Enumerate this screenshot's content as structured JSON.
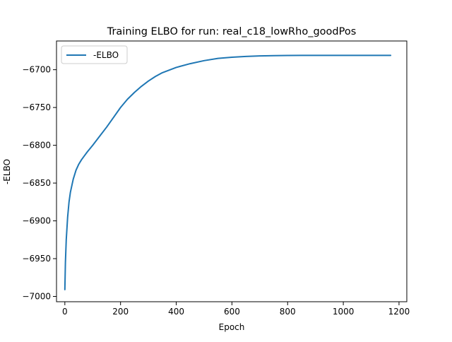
{
  "chart_data": {
    "type": "line",
    "title": "Training ELBO for run: real_c18_lowRho_goodPos",
    "xlabel": "Epoch",
    "ylabel": "-ELBO",
    "xlim": [
      -30,
      1228
    ],
    "ylim": [
      -7007,
      -6662
    ],
    "xticks": [
      0,
      200,
      400,
      600,
      800,
      1000,
      1200
    ],
    "xtick_labels": [
      "0",
      "200",
      "400",
      "600",
      "800",
      "1000",
      "1200"
    ],
    "yticks": [
      -7000,
      -6950,
      -6900,
      -6850,
      -6800,
      -6750,
      -6700
    ],
    "ytick_labels": [
      "−7000",
      "−6950",
      "−6900",
      "−6850",
      "−6800",
      "−6750",
      "−6700"
    ],
    "grid": false,
    "legend_position": "top-left",
    "series": [
      {
        "name": "-ELBO",
        "color": "#1f77b4",
        "x": [
          0,
          2,
          5,
          10,
          15,
          20,
          30,
          40,
          50,
          60,
          70,
          80,
          100,
          125,
          150,
          175,
          200,
          225,
          250,
          275,
          300,
          325,
          350,
          400,
          450,
          500,
          550,
          600,
          650,
          700,
          750,
          800,
          850,
          900,
          950,
          1000,
          1050,
          1100,
          1170
        ],
        "y": [
          -6991,
          -6955,
          -6925,
          -6895,
          -6875,
          -6862,
          -6845,
          -6833,
          -6825,
          -6819,
          -6814,
          -6809,
          -6800,
          -6788,
          -6776,
          -6763,
          -6750,
          -6739,
          -6730,
          -6722,
          -6715,
          -6709,
          -6704,
          -6697,
          -6692,
          -6688,
          -6685,
          -6683.5,
          -6682.5,
          -6681.8,
          -6681.4,
          -6681.2,
          -6681.1,
          -6681,
          -6681,
          -6681,
          -6681,
          -6681,
          -6681
        ]
      }
    ]
  }
}
